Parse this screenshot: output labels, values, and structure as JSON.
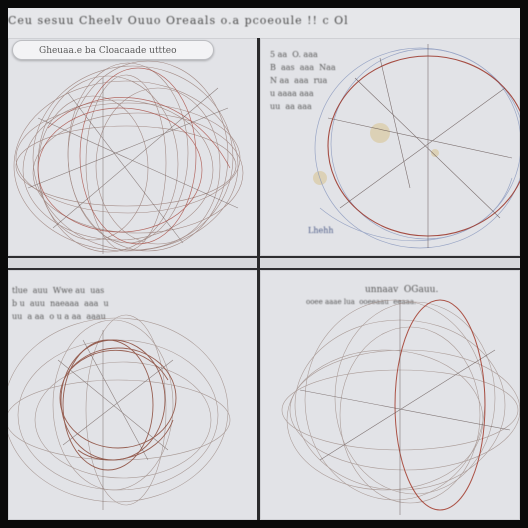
{
  "header": {
    "title": "Ceu sesuu Cheelv Ouuo Oreaals o.a pcoeoule !! c Ol"
  },
  "panels": {
    "top_left": {
      "search_text": "Gheuaa.e ba Cloacaade uttteo",
      "sketch": "line-sketch"
    },
    "top_right": {
      "caption": "5 aa  O. aaa\nB  aas  aaa  Naa\nN aa  aaa  rua\nu aaaa aaa\nuu  aa aaa",
      "footer": "Lhehh",
      "sketch": "line-sketch"
    },
    "bottom_left": {
      "caption": "tlue  auu  Wwe au  uas\nb u  auu  naeaaa  aaa  u\nuu  a aa  o u a aa  aaau",
      "sketch": "line-sketch"
    },
    "bottom_right": {
      "caption": "unnaav  OGauu.",
      "subcaption": "ooee aaae lua  ooeeaau  eeaaa.",
      "sketch": "line-sketch"
    }
  },
  "colors": {
    "frame": "#0a0a0a",
    "paper": "#e2e3e7",
    "ink": "#8b6d66",
    "accent_red": "#a23a2a",
    "accent_blue": "#5b6fa8",
    "divider": "#2a2a2c"
  }
}
